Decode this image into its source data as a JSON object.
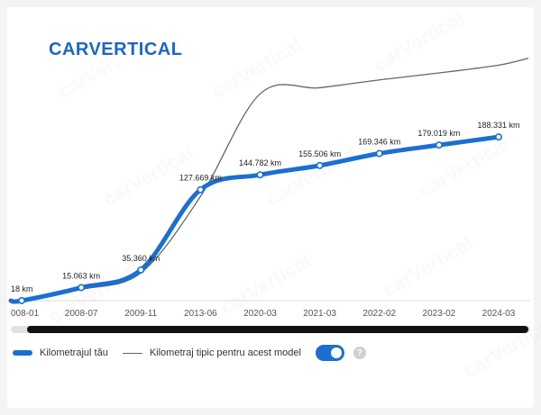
{
  "brand": {
    "logo_text": "carVertical",
    "accent": "#1b6fd1"
  },
  "legend": {
    "your_mileage_label": "Kilometrajul tău",
    "typical_label": "Kilometraj tipic pentru acest model",
    "typical_toggle_on": true,
    "help_glyph": "?"
  },
  "chart_data": {
    "type": "line",
    "categories": [
      "008-01",
      "2008-07",
      "2009-11",
      "2013-06",
      "2020-03",
      "2021-03",
      "2022-02",
      "2023-02",
      "2024-03"
    ],
    "series": [
      {
        "name": "Kilometrajul tău",
        "color": "#1b6fd1",
        "values": [
          18,
          15063,
          35360,
          127669,
          144782,
          155506,
          169346,
          179019,
          188331
        ],
        "labels": [
          "18 km",
          "15.063 km",
          "35.360 km",
          "127.669 km",
          "144.782 km",
          "155.506 km",
          "169.346 km",
          "179.019 km",
          "188.331 km"
        ]
      },
      {
        "name": "Kilometraj tipic pentru acest model",
        "color": "#666666",
        "values": [
          0,
          13000,
          32000,
          120000,
          238000,
          245000,
          254000,
          262000,
          271000
        ]
      }
    ],
    "ylim": [
      0,
      290000
    ],
    "grid": false,
    "legend_position": "bottom-left"
  }
}
